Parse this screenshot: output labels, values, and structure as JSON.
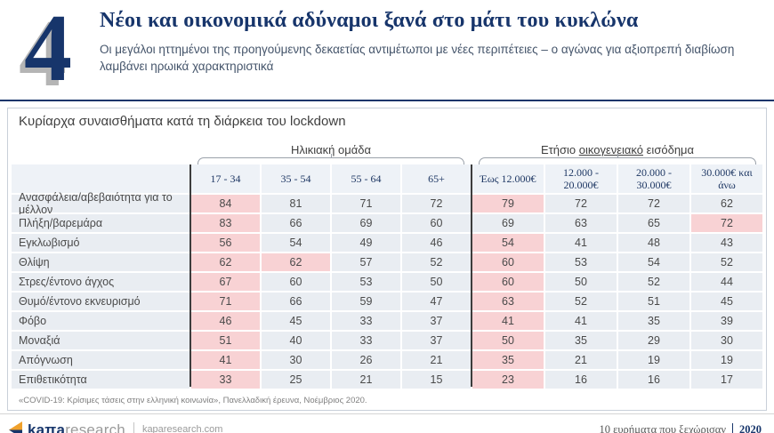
{
  "header": {
    "number": "4",
    "title": "Νέοι και οικονομικά αδύναμοι ξανά στο μάτι του κυκλώνα",
    "subtitle": "Οι μεγάλοι ηττημένοι της προηγούμενης δεκαετίας αντιμέτωποι με νέες περιπέτειες – ο αγώνας για αξιοπρεπή διαβίωση λαμβάνει ηρωικά χαρακτηριστικά"
  },
  "card": {
    "title": "Κυρίαρχα συναισθήματα κατά τη διάρκεια του lockdown",
    "income_label": {
      "pre": "Ετήσιο",
      "underlined": "οικογενειακό",
      "post": "εισόδημα"
    },
    "footnote": "«COVID-19: Κρίσιμες τάσεις στην ελληνική κοινωνία», Πανελλαδική έρευνα, Νοέμβριος 2020."
  },
  "chart_data": {
    "type": "table",
    "title": "Κυρίαρχα συναισθήματα κατά τη διάρκεια του lockdown",
    "column_groups": [
      {
        "label": "Ηλικιακή ομάδα",
        "columns": [
          "17 - 34",
          "35 - 54",
          "55 - 64",
          "65+"
        ]
      },
      {
        "label": "Ετήσιο οικογενειακό εισόδημα",
        "columns": [
          "Έως 12.000€",
          "12.000 - 20.000€",
          "20.000 - 30.000€",
          "30.000€ και άνω"
        ]
      }
    ],
    "highlight_meaning": "pink cells mark the highest-scoring segment(s) per emotion",
    "rows": [
      {
        "label": "Ανασφάλεια/αβεβαιότητα για το μέλλον",
        "values": [
          84,
          81,
          71,
          72,
          79,
          72,
          72,
          62
        ],
        "highlighted": [
          0,
          4
        ]
      },
      {
        "label": "Πλήξη/βαρεμάρα",
        "values": [
          83,
          66,
          69,
          60,
          69,
          63,
          65,
          72
        ],
        "highlighted": [
          0,
          7
        ]
      },
      {
        "label": "Εγκλωβισμό",
        "values": [
          56,
          54,
          49,
          46,
          54,
          41,
          48,
          43
        ],
        "highlighted": [
          0,
          4
        ]
      },
      {
        "label": "Θλίψη",
        "values": [
          62,
          62,
          57,
          52,
          60,
          53,
          54,
          52
        ],
        "highlighted": [
          0,
          1,
          4
        ]
      },
      {
        "label": "Στρες/έντονο άγχος",
        "values": [
          67,
          60,
          53,
          50,
          60,
          50,
          52,
          44
        ],
        "highlighted": [
          0,
          4
        ]
      },
      {
        "label": "Θυμό/έντονο εκνευρισμό",
        "values": [
          71,
          66,
          59,
          47,
          63,
          52,
          51,
          45
        ],
        "highlighted": [
          0,
          4
        ]
      },
      {
        "label": "Φόβο",
        "values": [
          46,
          45,
          33,
          37,
          41,
          41,
          35,
          39
        ],
        "highlighted": [
          0,
          4
        ]
      },
      {
        "label": "Μοναξιά",
        "values": [
          51,
          40,
          33,
          37,
          50,
          35,
          29,
          30
        ],
        "highlighted": [
          0,
          4
        ]
      },
      {
        "label": "Απόγνωση",
        "values": [
          41,
          30,
          26,
          21,
          35,
          21,
          19,
          19
        ],
        "highlighted": [
          0,
          4
        ]
      },
      {
        "label": "Επιθετικότητα",
        "values": [
          33,
          25,
          21,
          15,
          23,
          16,
          16,
          17
        ],
        "highlighted": [
          0,
          4
        ]
      }
    ]
  },
  "footer": {
    "logo_bold": "kaπa",
    "logo_light": "research",
    "logo_domain": "kaparesearch.com",
    "right_text": "10 ευρήματα που ξεχώρισαν",
    "right_year": "2020"
  },
  "colors": {
    "navy": "#17356b",
    "pink": "#f8d2d4",
    "row_bg": "#e9edf2",
    "header_bg": "#eef2f7",
    "orange": "#f0a12c"
  }
}
